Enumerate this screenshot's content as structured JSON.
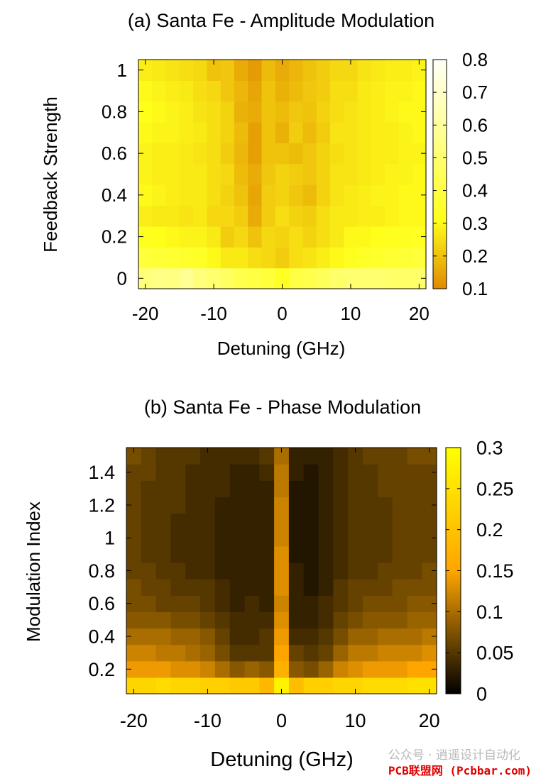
{
  "watermark": {
    "wechat": "公众号 · 逍遥设计自动化",
    "site": "PCB联盟网 (Pcbbar.com)"
  },
  "colors": {
    "scale_low": "#e08a00",
    "scale_mid": "#ffff1a",
    "scale_high": "#fffff7",
    "phase_low": "#000000",
    "phase_mid": "#ffa500",
    "phase_high": "#ffff00"
  },
  "chart_data": [
    {
      "type": "heatmap",
      "title": "(a) Santa Fe - Amplitude Modulation",
      "xlabel": "Detuning (GHz)",
      "ylabel": "Feedback Strength",
      "x": [
        -20,
        -18,
        -16,
        -14,
        -12,
        -10,
        -8,
        -6,
        -4,
        -2,
        0,
        2,
        4,
        6,
        8,
        10,
        12,
        14,
        16,
        18,
        20
      ],
      "y": [
        0,
        0.1,
        0.2,
        0.3,
        0.4,
        0.5,
        0.6,
        0.7,
        0.8,
        0.9,
        1.0
      ],
      "xlim": [
        -21,
        21
      ],
      "ylim": [
        -0.05,
        1.05
      ],
      "xticks": [
        "-20",
        "-10",
        "0",
        "10",
        "20"
      ],
      "yticks": [
        "0",
        "0.2",
        "0.4",
        "0.6",
        "0.8",
        "1"
      ],
      "colorbar": {
        "min": 0.1,
        "max": 0.8,
        "ticks": [
          "0.1",
          "0.2",
          "0.3",
          "0.4",
          "0.5",
          "0.6",
          "0.7",
          "0.8"
        ]
      },
      "grid": false,
      "z": [
        [
          0.52,
          0.55,
          0.54,
          0.58,
          0.52,
          0.5,
          0.47,
          0.42,
          0.4,
          0.38,
          0.33,
          0.4,
          0.42,
          0.45,
          0.48,
          0.5,
          0.5,
          0.5,
          0.48,
          0.48,
          0.48
        ],
        [
          0.38,
          0.37,
          0.36,
          0.35,
          0.34,
          0.3,
          0.27,
          0.27,
          0.25,
          0.24,
          0.22,
          0.25,
          0.26,
          0.28,
          0.3,
          0.32,
          0.34,
          0.35,
          0.36,
          0.37,
          0.38
        ],
        [
          0.32,
          0.31,
          0.3,
          0.29,
          0.29,
          0.27,
          0.22,
          0.24,
          0.2,
          0.24,
          0.23,
          0.25,
          0.23,
          0.25,
          0.27,
          0.3,
          0.3,
          0.31,
          0.32,
          0.32,
          0.33
        ],
        [
          0.28,
          0.27,
          0.27,
          0.26,
          0.27,
          0.24,
          0.24,
          0.22,
          0.16,
          0.22,
          0.25,
          0.23,
          0.22,
          0.25,
          0.27,
          0.27,
          0.28,
          0.28,
          0.29,
          0.3,
          0.3
        ],
        [
          0.3,
          0.29,
          0.28,
          0.27,
          0.27,
          0.25,
          0.23,
          0.2,
          0.15,
          0.22,
          0.23,
          0.21,
          0.19,
          0.23,
          0.26,
          0.27,
          0.28,
          0.29,
          0.29,
          0.3,
          0.3
        ],
        [
          0.29,
          0.28,
          0.28,
          0.27,
          0.27,
          0.25,
          0.24,
          0.19,
          0.16,
          0.21,
          0.23,
          0.22,
          0.21,
          0.23,
          0.26,
          0.26,
          0.27,
          0.28,
          0.29,
          0.29,
          0.3
        ],
        [
          0.29,
          0.28,
          0.28,
          0.27,
          0.26,
          0.25,
          0.22,
          0.18,
          0.14,
          0.2,
          0.2,
          0.19,
          0.21,
          0.23,
          0.25,
          0.26,
          0.27,
          0.28,
          0.28,
          0.29,
          0.29
        ],
        [
          0.3,
          0.29,
          0.29,
          0.28,
          0.27,
          0.25,
          0.23,
          0.19,
          0.14,
          0.2,
          0.17,
          0.22,
          0.19,
          0.22,
          0.26,
          0.26,
          0.27,
          0.28,
          0.28,
          0.29,
          0.3
        ],
        [
          0.31,
          0.3,
          0.29,
          0.28,
          0.26,
          0.25,
          0.23,
          0.17,
          0.16,
          0.2,
          0.19,
          0.21,
          0.2,
          0.23,
          0.25,
          0.26,
          0.27,
          0.28,
          0.29,
          0.3,
          0.3
        ],
        [
          0.3,
          0.29,
          0.28,
          0.27,
          0.25,
          0.24,
          0.21,
          0.18,
          0.15,
          0.2,
          0.17,
          0.19,
          0.21,
          0.22,
          0.25,
          0.25,
          0.27,
          0.28,
          0.29,
          0.29,
          0.3
        ],
        [
          0.28,
          0.27,
          0.26,
          0.25,
          0.24,
          0.2,
          0.21,
          0.16,
          0.13,
          0.19,
          0.16,
          0.18,
          0.2,
          0.22,
          0.24,
          0.24,
          0.26,
          0.27,
          0.28,
          0.28,
          0.29
        ]
      ]
    },
    {
      "type": "heatmap",
      "title": "(b) Santa Fe - Phase Modulation",
      "xlabel": "Detuning (GHz)",
      "ylabel": "Modulation Index",
      "x": [
        -20,
        -18,
        -16,
        -14,
        -12,
        -10,
        -8,
        -6,
        -4,
        -2,
        0,
        2,
        4,
        6,
        8,
        10,
        12,
        14,
        16,
        18,
        20
      ],
      "y": [
        0.1,
        0.2,
        0.3,
        0.4,
        0.5,
        0.6,
        0.7,
        0.8,
        0.9,
        1.0,
        1.1,
        1.2,
        1.3,
        1.4,
        1.5
      ],
      "xlim": [
        -21,
        21
      ],
      "ylim": [
        0.05,
        1.55
      ],
      "xticks": [
        "-20",
        "-10",
        "0",
        "10",
        "20"
      ],
      "yticks": [
        "0.2",
        "0.4",
        "0.6",
        "0.8",
        "1",
        "1.2",
        "1.4"
      ],
      "colorbar": {
        "min": 0,
        "max": 0.3,
        "ticks": [
          "0",
          "0.05",
          "0.1",
          "0.15",
          "0.2",
          "0.25",
          "0.3"
        ]
      },
      "grid": false,
      "z": [
        [
          0.23,
          0.23,
          0.24,
          0.23,
          0.23,
          0.22,
          0.22,
          0.21,
          0.21,
          0.18,
          0.28,
          0.19,
          0.22,
          0.22,
          0.23,
          0.23,
          0.24,
          0.24,
          0.24,
          0.25,
          0.25
        ],
        [
          0.14,
          0.14,
          0.14,
          0.13,
          0.13,
          0.12,
          0.1,
          0.08,
          0.09,
          0.08,
          0.17,
          0.08,
          0.07,
          0.09,
          0.12,
          0.13,
          0.14,
          0.14,
          0.14,
          0.15,
          0.15
        ],
        [
          0.12,
          0.12,
          0.11,
          0.11,
          0.1,
          0.09,
          0.07,
          0.05,
          0.05,
          0.05,
          0.15,
          0.06,
          0.05,
          0.06,
          0.09,
          0.11,
          0.11,
          0.12,
          0.12,
          0.12,
          0.13
        ],
        [
          0.1,
          0.1,
          0.1,
          0.09,
          0.09,
          0.08,
          0.06,
          0.04,
          0.04,
          0.05,
          0.14,
          0.04,
          0.04,
          0.05,
          0.07,
          0.09,
          0.09,
          0.1,
          0.1,
          0.1,
          0.11
        ],
        [
          0.08,
          0.08,
          0.08,
          0.07,
          0.07,
          0.06,
          0.05,
          0.04,
          0.04,
          0.04,
          0.13,
          0.03,
          0.03,
          0.04,
          0.06,
          0.07,
          0.08,
          0.08,
          0.08,
          0.09,
          0.09
        ],
        [
          0.07,
          0.07,
          0.06,
          0.06,
          0.06,
          0.05,
          0.04,
          0.03,
          0.04,
          0.03,
          0.12,
          0.03,
          0.03,
          0.04,
          0.05,
          0.06,
          0.07,
          0.07,
          0.07,
          0.08,
          0.08
        ],
        [
          0.07,
          0.06,
          0.06,
          0.05,
          0.05,
          0.05,
          0.04,
          0.03,
          0.03,
          0.03,
          0.13,
          0.03,
          0.02,
          0.03,
          0.05,
          0.06,
          0.06,
          0.06,
          0.07,
          0.07,
          0.07
        ],
        [
          0.06,
          0.06,
          0.05,
          0.05,
          0.04,
          0.04,
          0.03,
          0.03,
          0.03,
          0.03,
          0.13,
          0.03,
          0.02,
          0.03,
          0.04,
          0.05,
          0.05,
          0.06,
          0.06,
          0.06,
          0.07
        ],
        [
          0.06,
          0.05,
          0.05,
          0.04,
          0.04,
          0.04,
          0.03,
          0.03,
          0.03,
          0.03,
          0.13,
          0.02,
          0.02,
          0.03,
          0.04,
          0.05,
          0.05,
          0.05,
          0.06,
          0.06,
          0.06
        ],
        [
          0.06,
          0.05,
          0.05,
          0.04,
          0.04,
          0.04,
          0.03,
          0.03,
          0.03,
          0.03,
          0.12,
          0.02,
          0.02,
          0.03,
          0.04,
          0.05,
          0.05,
          0.05,
          0.06,
          0.06,
          0.06
        ],
        [
          0.06,
          0.05,
          0.05,
          0.04,
          0.04,
          0.04,
          0.03,
          0.03,
          0.03,
          0.03,
          0.12,
          0.02,
          0.02,
          0.03,
          0.04,
          0.05,
          0.05,
          0.05,
          0.06,
          0.06,
          0.06
        ],
        [
          0.06,
          0.05,
          0.05,
          0.05,
          0.04,
          0.04,
          0.03,
          0.03,
          0.03,
          0.03,
          0.12,
          0.02,
          0.02,
          0.03,
          0.04,
          0.05,
          0.05,
          0.05,
          0.06,
          0.06,
          0.06
        ],
        [
          0.06,
          0.05,
          0.05,
          0.05,
          0.04,
          0.04,
          0.04,
          0.03,
          0.03,
          0.03,
          0.11,
          0.02,
          0.02,
          0.03,
          0.04,
          0.05,
          0.05,
          0.06,
          0.06,
          0.06,
          0.06
        ],
        [
          0.06,
          0.06,
          0.05,
          0.05,
          0.04,
          0.04,
          0.04,
          0.03,
          0.03,
          0.04,
          0.11,
          0.03,
          0.02,
          0.03,
          0.04,
          0.05,
          0.05,
          0.06,
          0.06,
          0.06,
          0.06
        ],
        [
          0.07,
          0.06,
          0.05,
          0.05,
          0.05,
          0.04,
          0.04,
          0.04,
          0.04,
          0.05,
          0.1,
          0.03,
          0.03,
          0.03,
          0.04,
          0.05,
          0.06,
          0.06,
          0.06,
          0.07,
          0.07
        ]
      ]
    }
  ]
}
